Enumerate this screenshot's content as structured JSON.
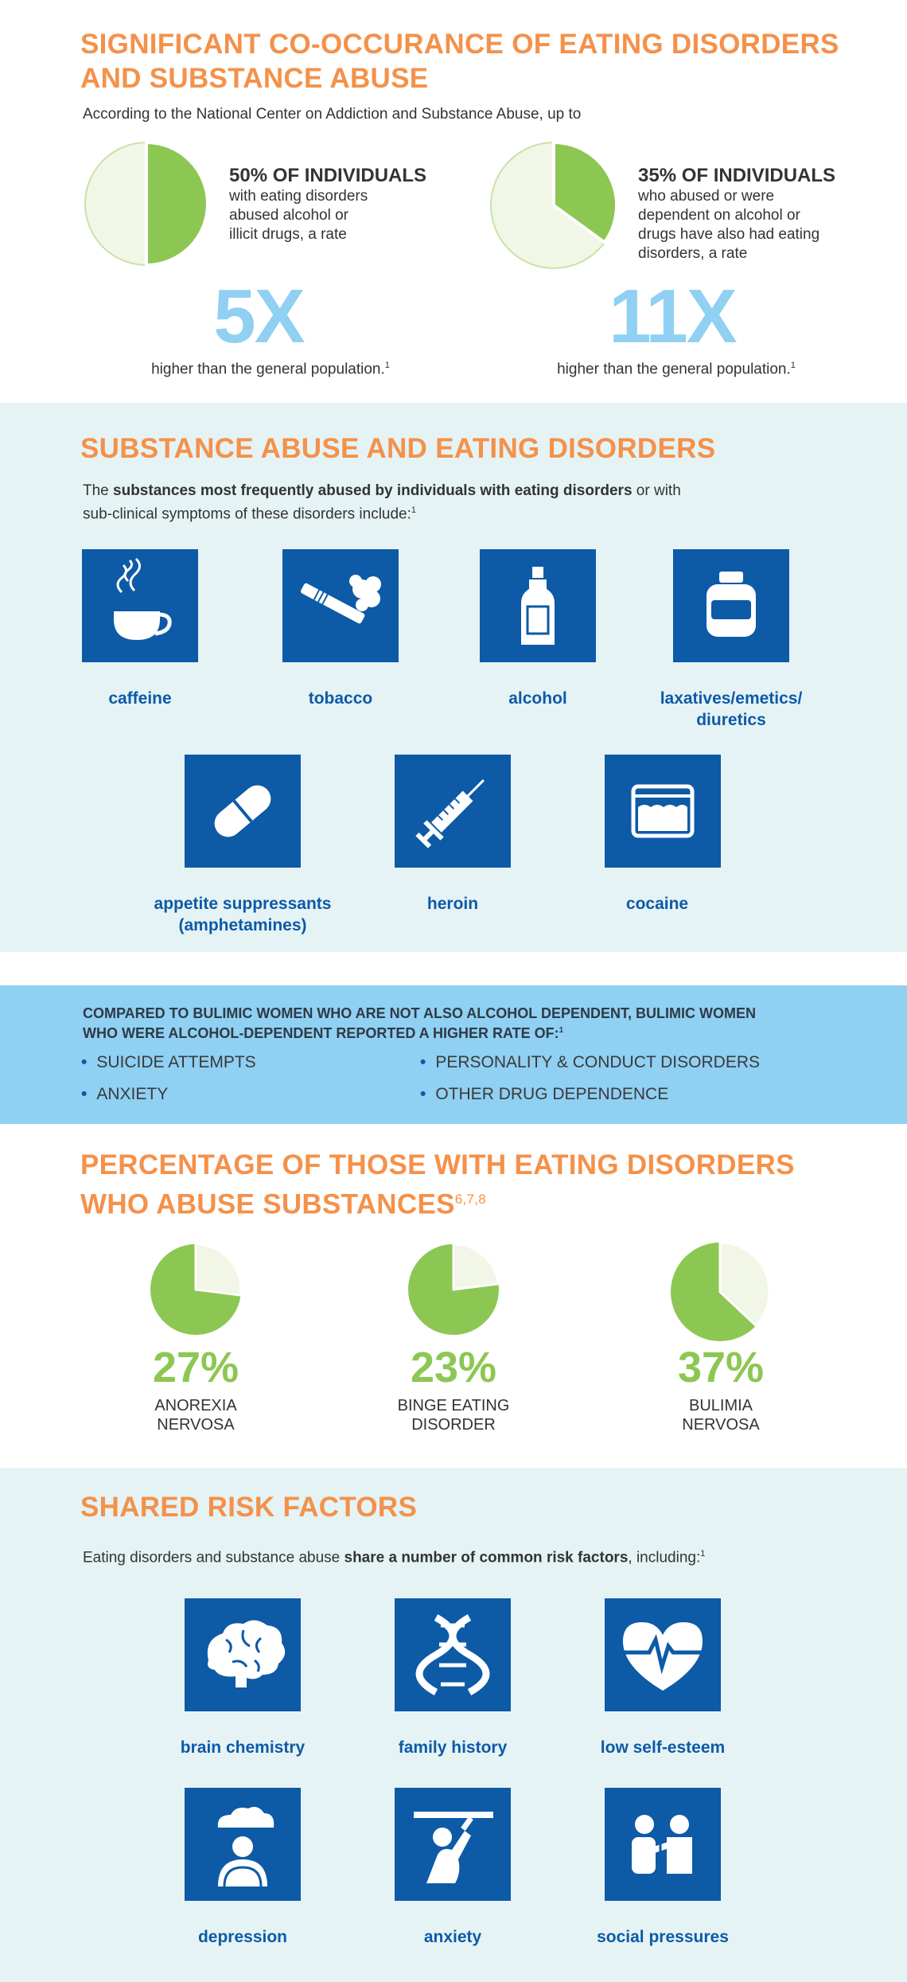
{
  "section1": {
    "title_line1": "SIGNIFICANT CO-OCCURANCE OF EATING DISORDERS",
    "title_line2": "AND SUBSTANCE ABUSE",
    "intro": "According to the National Center on Addiction and Substance Abuse, up to",
    "stats": [
      {
        "pie_fraction": 0.5,
        "title": "50% OF INDIVIDUALS",
        "desc_lines": [
          "with eating disorders",
          "abused alcohol or",
          "illicit drugs, a rate"
        ],
        "multiplier": "5X",
        "footnote": "higher than the general population.",
        "sup": "1"
      },
      {
        "pie_fraction": 0.35,
        "title": "35% OF INDIVIDUALS",
        "desc_lines": [
          "who abused or were",
          "dependent on alcohol or",
          "drugs have also had eating",
          "disorders, a rate"
        ],
        "multiplier": "11X",
        "footnote": "higher than the general population.",
        "sup": "1"
      }
    ]
  },
  "section2": {
    "title": "SUBSTANCE ABUSE AND EATING DISORDERS",
    "intro_pre": "The ",
    "intro_bold": "substances most frequently abused by individuals with eating disorders",
    "intro_post": " or with",
    "intro_line2": "sub-clinical symptoms of these disorders include:",
    "sup": "1",
    "items": [
      {
        "label": "caffeine",
        "icon": "coffee-cup-icon"
      },
      {
        "label": "tobacco",
        "icon": "cigarette-icon"
      },
      {
        "label": "alcohol",
        "icon": "bottle-icon"
      },
      {
        "label_line1": "laxatives/emetics/",
        "label_line2": "diuretics",
        "icon": "pill-jar-icon"
      },
      {
        "label_line1": "appetite suppressants",
        "label_line2": "(amphetamines)",
        "icon": "capsule-icon"
      },
      {
        "label": "heroin",
        "icon": "syringe-icon"
      },
      {
        "label": "cocaine",
        "icon": "powder-bag-icon"
      }
    ]
  },
  "section3": {
    "title_line1": "COMPARED TO BULIMIC WOMEN WHO ARE NOT ALSO ALCOHOL DEPENDENT, BULIMIC WOMEN",
    "title_line2": "WHO WERE ALCOHOL-DEPENDENT REPORTED A HIGHER RATE OF:",
    "sup": "1",
    "bullets": [
      "SUICIDE ATTEMPTS",
      "PERSONALITY & CONDUCT DISORDERS",
      "ANXIETY",
      "OTHER DRUG DEPENDENCE"
    ]
  },
  "section4": {
    "title_line1": "PERCENTAGE OF THOSE WITH EATING DISORDERS",
    "title_line2": "WHO ABUSE SUBSTANCES",
    "sup": "6,7,8",
    "items": [
      {
        "pct": "27%",
        "fraction": 0.27,
        "label_line1": "ANOREXIA",
        "label_line2": "NERVOSA"
      },
      {
        "pct": "23%",
        "fraction": 0.23,
        "label_line1": "BINGE EATING",
        "label_line2": "DISORDER"
      },
      {
        "pct": "37%",
        "fraction": 0.37,
        "label_line1": "BULIMIA",
        "label_line2": "NERVOSA"
      }
    ]
  },
  "section5": {
    "title": "SHARED RISK FACTORS",
    "intro_pre": "Eating disorders and substance abuse ",
    "intro_bold": "share a number of common risk factors",
    "intro_post": ", including:",
    "sup": "1",
    "items": [
      {
        "label": "brain chemistry",
        "icon": "brain-icon"
      },
      {
        "label": "family history",
        "icon": "dna-icon"
      },
      {
        "label": "low self-esteem",
        "icon": "heart-pulse-icon"
      },
      {
        "label": "depression",
        "icon": "rain-cloud-person-icon"
      },
      {
        "label": "anxiety",
        "icon": "pressure-person-icon"
      },
      {
        "label": "social pressures",
        "icon": "people-push-icon"
      }
    ]
  },
  "colors": {
    "orange": "#f4914a",
    "blue_tile": "#0d5aa7",
    "light_blue_text": "#8fd0f3",
    "green": "#8cc753",
    "pie_light": "#f2f6e6",
    "section_bg": "#e5f3f5",
    "banner_bg": "#8fd0f3"
  }
}
